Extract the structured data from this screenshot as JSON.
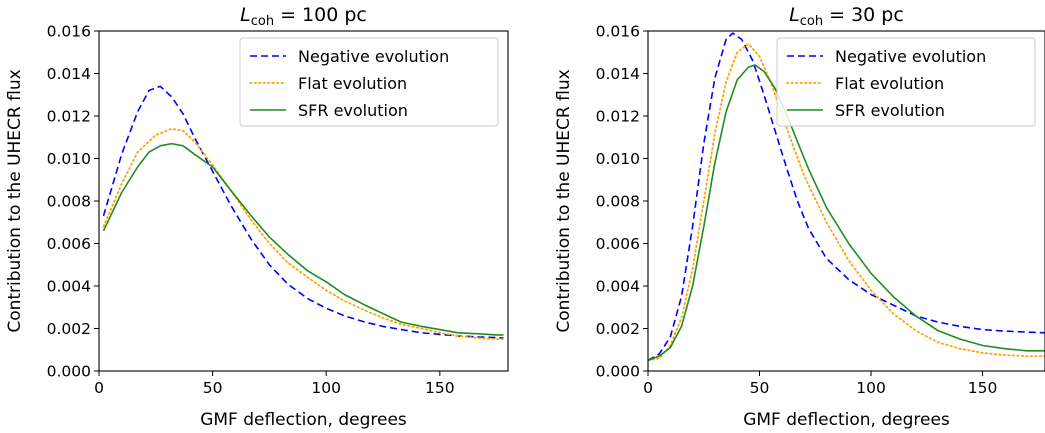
{
  "chart_data": [
    {
      "type": "line",
      "title": {
        "main": "L",
        "sub": "coh",
        "rest": " = 100 pc"
      },
      "xlabel": "GMF deflection, degrees",
      "ylabel": "Contribution to the UHECR flux",
      "xlim": [
        0,
        180
      ],
      "ylim": [
        0,
        0.016
      ],
      "xticks": [
        0,
        50,
        100,
        150
      ],
      "xtick_labels": [
        "0",
        "50",
        "100",
        "150"
      ],
      "yticks": [
        0,
        0.002,
        0.004,
        0.006,
        0.008,
        0.01,
        0.012,
        0.014,
        0.016
      ],
      "ytick_labels": [
        "0.000",
        "0.002",
        "0.004",
        "0.006",
        "0.008",
        "0.010",
        "0.012",
        "0.014",
        "0.016"
      ],
      "grid": false,
      "legend_position": "top-right",
      "series": [
        {
          "name": "Negative evolution",
          "color": "#0000ff",
          "style": "dashed",
          "x": [
            2,
            10,
            17,
            22,
            27,
            32,
            37,
            42,
            50,
            58,
            67,
            75,
            83,
            92,
            100,
            108,
            117,
            125,
            133,
            142,
            150,
            158,
            167,
            175,
            178
          ],
          "y": [
            0.0073,
            0.0102,
            0.0122,
            0.0132,
            0.0134,
            0.0129,
            0.0121,
            0.011,
            0.0094,
            0.0078,
            0.0062,
            0.005,
            0.0041,
            0.0034,
            0.00295,
            0.0026,
            0.0023,
            0.0021,
            0.00195,
            0.0018,
            0.00172,
            0.00165,
            0.0016,
            0.00157,
            0.00155
          ]
        },
        {
          "name": "Flat evolution",
          "color": "#ffa500",
          "style": "dotted",
          "x": [
            2,
            10,
            17,
            25,
            32,
            37,
            42,
            50,
            58,
            67,
            75,
            83,
            92,
            100,
            108,
            117,
            125,
            133,
            142,
            150,
            158,
            167,
            175,
            178
          ],
          "y": [
            0.0068,
            0.0088,
            0.0103,
            0.0111,
            0.0114,
            0.0113,
            0.0108,
            0.0097,
            0.0085,
            0.0071,
            0.006,
            0.0051,
            0.0044,
            0.0038,
            0.0033,
            0.00285,
            0.0025,
            0.0022,
            0.002,
            0.0018,
            0.00165,
            0.00155,
            0.0015,
            0.0015
          ]
        },
        {
          "name": "SFR evolution",
          "color": "#228b22",
          "style": "solid",
          "x": [
            2,
            10,
            17,
            22,
            27,
            32,
            37,
            42,
            50,
            58,
            67,
            75,
            83,
            92,
            100,
            108,
            117,
            125,
            133,
            142,
            150,
            158,
            167,
            175,
            178
          ],
          "y": [
            0.0066,
            0.0084,
            0.0096,
            0.0103,
            0.0106,
            0.0107,
            0.0106,
            0.0102,
            0.0096,
            0.0085,
            0.0073,
            0.0063,
            0.0055,
            0.0047,
            0.0042,
            0.0036,
            0.0031,
            0.0027,
            0.0023,
            0.0021,
            0.00195,
            0.0018,
            0.00175,
            0.0017,
            0.0017
          ]
        }
      ]
    },
    {
      "type": "line",
      "title": {
        "main": "L",
        "sub": "coh",
        "rest": " = 30 pc"
      },
      "xlabel": "GMF deflection, degrees",
      "ylabel": "Contribution to the UHECR flux",
      "xlim": [
        0,
        178
      ],
      "ylim": [
        0,
        0.016
      ],
      "xticks": [
        0,
        50,
        100,
        150
      ],
      "xtick_labels": [
        "0",
        "50",
        "100",
        "150"
      ],
      "yticks": [
        0,
        0.002,
        0.004,
        0.006,
        0.008,
        0.01,
        0.012,
        0.014,
        0.016
      ],
      "ytick_labels": [
        "0.000",
        "0.002",
        "0.004",
        "0.006",
        "0.008",
        "0.010",
        "0.012",
        "0.014",
        "0.016"
      ],
      "grid": false,
      "legend_position": "top-right",
      "series": [
        {
          "name": "Negative evolution",
          "color": "#0000ff",
          "style": "dashed",
          "x": [
            0,
            5,
            10,
            15,
            20,
            25,
            30,
            35,
            38,
            42,
            47,
            52,
            57,
            62,
            67,
            72,
            80,
            90,
            100,
            110,
            120,
            130,
            140,
            150,
            160,
            170,
            178
          ],
          "y": [
            0.0005,
            0.0008,
            0.0016,
            0.0035,
            0.0068,
            0.0107,
            0.0138,
            0.0156,
            0.0159,
            0.0156,
            0.0146,
            0.013,
            0.0113,
            0.0096,
            0.008,
            0.0067,
            0.0053,
            0.0043,
            0.0036,
            0.0031,
            0.0026,
            0.0023,
            0.0021,
            0.00195,
            0.00188,
            0.00183,
            0.0018
          ]
        },
        {
          "name": "Flat evolution",
          "color": "#ffa500",
          "style": "dotted",
          "x": [
            0,
            5,
            10,
            15,
            20,
            25,
            30,
            35,
            40,
            45,
            50,
            55,
            60,
            65,
            70,
            80,
            90,
            100,
            110,
            120,
            130,
            140,
            150,
            160,
            170,
            178
          ],
          "y": [
            0.0005,
            0.0006,
            0.0012,
            0.0025,
            0.0048,
            0.008,
            0.0112,
            0.0136,
            0.015,
            0.0154,
            0.0148,
            0.0136,
            0.0121,
            0.0106,
            0.0092,
            0.007,
            0.0052,
            0.0038,
            0.0027,
            0.0019,
            0.00135,
            0.00105,
            0.00085,
            0.00075,
            0.0007,
            0.0007
          ]
        },
        {
          "name": "SFR evolution",
          "color": "#228b22",
          "style": "solid",
          "x": [
            0,
            5,
            10,
            15,
            20,
            25,
            30,
            35,
            40,
            45,
            48,
            52,
            57,
            62,
            67,
            72,
            80,
            90,
            100,
            110,
            120,
            130,
            140,
            150,
            160,
            170,
            178
          ],
          "y": [
            0.0005,
            0.0007,
            0.0011,
            0.0021,
            0.004,
            0.0068,
            0.0098,
            0.0122,
            0.0137,
            0.0143,
            0.0144,
            0.0141,
            0.0133,
            0.0121,
            0.0108,
            0.0095,
            0.0077,
            0.006,
            0.0046,
            0.0035,
            0.0026,
            0.0019,
            0.0015,
            0.0012,
            0.00105,
            0.00095,
            0.00095
          ]
        }
      ]
    }
  ]
}
